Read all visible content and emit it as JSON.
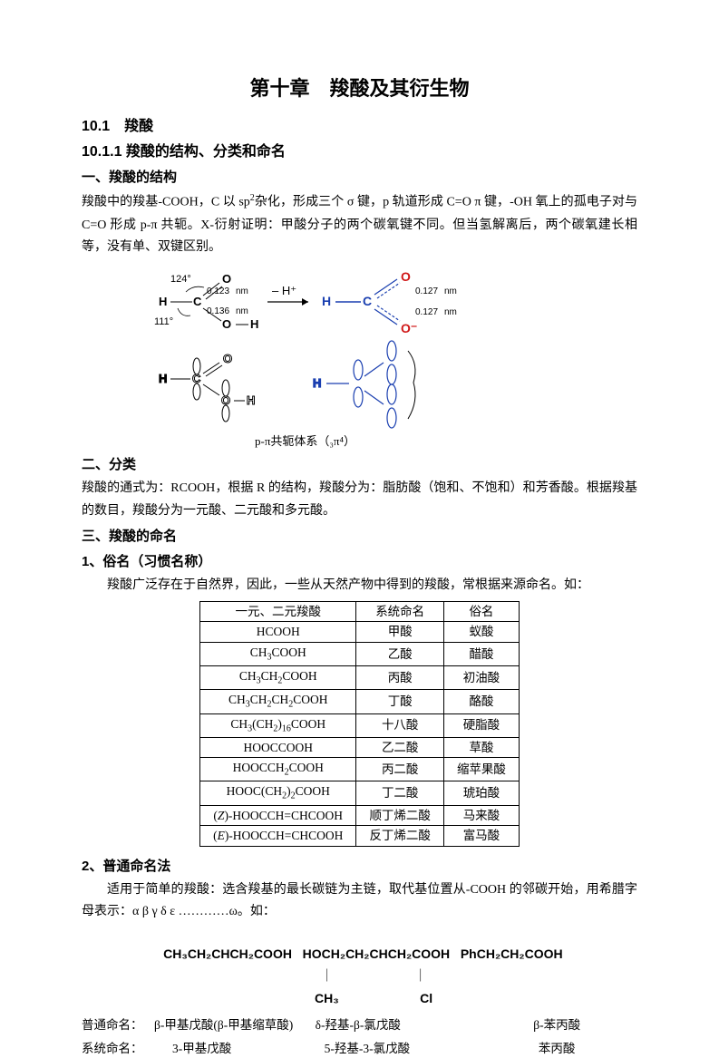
{
  "chapter_title": "第十章　羧酸及其衍生物",
  "s10_1": "10.1　羧酸",
  "s10_1_1": "10.1.1 羧酸的结构、分类和命名",
  "h_structure": "一、羧酸的结构",
  "p_structure_a": "羧酸中的羧基-COOH，C 以 sp",
  "p_structure_b": "杂化，形成三个 σ 键，p 轨道形成 C=O π 键，-OH 氧上的孤电子对与 C=O 形成 p-π 共轭。X-衍射证明：甲酸分子的两个碳氧键不同。但当氢解离后，两个碳氧建长相等，没有单、双键区别。",
  "diagram": {
    "angle_top": "124°",
    "angle_bottom": "111°",
    "len1": "0.123",
    "len2": "0.136",
    "len3": "0.127",
    "len4": "0.127",
    "nm": "nm",
    "arrow_label": "– H⁺",
    "caption": "p-π共轭体系（₃π⁴）",
    "colors": {
      "hc": "#1a3fb0",
      "oxy": "#d01818",
      "bond": "#000000"
    }
  },
  "h_classify": "二、分类",
  "p_classify": "羧酸的通式为：RCOOH，根据 R 的结构，羧酸分为：脂肪酸（饱和、不饱和）和芳香酸。根据羧基的数目，羧酸分为一元酸、二元酸和多元酸。",
  "h_naming": "三、羧酸的命名",
  "h_common": "1、俗名（习惯名称）",
  "p_common": "羧酸广泛存在于自然界，因此，一些从天然产物中得到的羧酸，常根据来源命名。如：",
  "table": {
    "headers": [
      "一元、二元羧酸",
      "系统命名",
      "俗名"
    ],
    "rows": [
      [
        "HCOOH",
        "甲酸",
        "蚁酸"
      ],
      [
        "CH3COOH",
        "乙酸",
        "醋酸"
      ],
      [
        "CH3CH2COOH",
        "丙酸",
        "初油酸"
      ],
      [
        "CH3CH2CH2COOH",
        "丁酸",
        "酪酸"
      ],
      [
        "CH3(CH2)16COOH",
        "十八酸",
        "硬脂酸"
      ],
      [
        "HOOCCOOH",
        "乙二酸",
        "草酸"
      ],
      [
        "HOOCCH2COOH",
        "丙二酸",
        "缩苹果酸"
      ],
      [
        "HOOC(CH2)2COOH",
        "丁二酸",
        "琥珀酸"
      ],
      [
        "(Z)-HOOCCH=CHCOOH",
        "顺丁烯二酸",
        "马来酸"
      ],
      [
        "(E)-HOOCCH=CHCOOH",
        "反丁烯二酸",
        "富马酸"
      ]
    ]
  },
  "h_ordinary": "2、普通命名法",
  "p_ordinary": "适用于简单的羧酸：选含羧基的最长碳链为主链，取代基位置从-COOH 的邻碳开始，用希腊字母表示：α β γ δ ε …………ω。如：",
  "formulas": {
    "f1_top": "CH₃CH₂CHCH₂COOH",
    "f1_mid": "｜",
    "f1_bot": "CH₃",
    "f2_top": "HOCH₂CH₂CHCH₂COOH",
    "f2_mid": "｜",
    "f2_bot": "Cl",
    "f3_top": "PhCH₂CH₂COOH"
  },
  "naming": {
    "row1_label": "普通命名：",
    "row1_c1": "β-甲基戊酸(β-甲基缩草酸)",
    "row1_c2": "δ-羟基-β-氯戊酸",
    "row1_c3": "β-苯丙酸",
    "row2_label": "系统命名：",
    "row2_c1": "3-甲基戊酸",
    "row2_c2": "5-羟基-3-氯戊酸",
    "row2_c3": "苯丙酸"
  }
}
